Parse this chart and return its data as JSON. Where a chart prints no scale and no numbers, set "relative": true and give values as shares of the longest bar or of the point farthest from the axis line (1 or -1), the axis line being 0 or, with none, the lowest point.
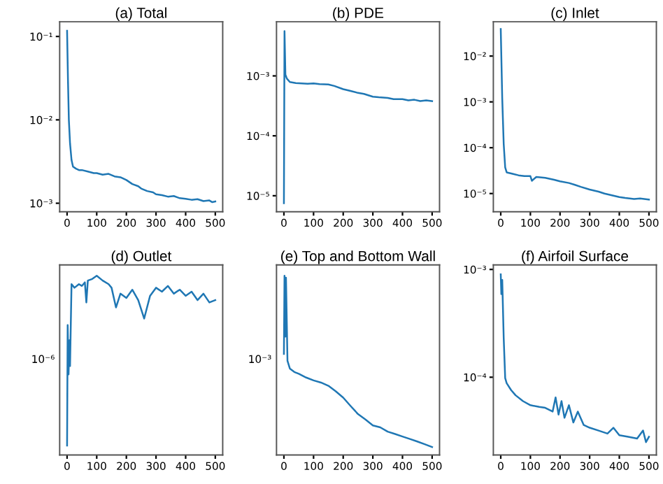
{
  "chart_data": [
    {
      "type": "line",
      "title": "(a) Total",
      "log": "y",
      "xlim": [
        -25,
        525
      ],
      "xticks": [
        0,
        100,
        200,
        300,
        400,
        500
      ],
      "ylim": [
        0.00079,
        0.15
      ],
      "yticks": [
        {
          "value": 0.1,
          "label": "10⁻¹"
        },
        {
          "value": 0.01,
          "label": "10⁻²"
        },
        {
          "value": 0.001,
          "label": "10⁻³"
        }
      ],
      "x": [
        0,
        3,
        6,
        10,
        15,
        20,
        30,
        40,
        50,
        70,
        90,
        100,
        120,
        140,
        160,
        180,
        200,
        220,
        240,
        250,
        270,
        290,
        300,
        320,
        340,
        360,
        380,
        400,
        420,
        440,
        460,
        480,
        490,
        500
      ],
      "series": [
        {
          "color": "#1f77b4",
          "values": [
            0.117,
            0.03,
            0.01,
            0.0052,
            0.0033,
            0.00275,
            0.0026,
            0.0025,
            0.0025,
            0.0024,
            0.0023,
            0.0023,
            0.0022,
            0.00225,
            0.0021,
            0.00205,
            0.0019,
            0.0017,
            0.0016,
            0.0015,
            0.0014,
            0.00135,
            0.00128,
            0.00125,
            0.0012,
            0.00122,
            0.00115,
            0.00113,
            0.0011,
            0.00112,
            0.00106,
            0.00108,
            0.00103,
            0.00105
          ]
        }
      ]
    },
    {
      "type": "line",
      "title": "(b) PDE",
      "log": "y",
      "xlim": [
        -25,
        525
      ],
      "xticks": [
        0,
        100,
        200,
        300,
        400,
        500
      ],
      "ylim": [
        5.4e-06,
        0.008
      ],
      "yticks": [
        {
          "value": 0.001,
          "label": "10⁻³"
        },
        {
          "value": 0.0001,
          "label": "10⁻⁴"
        },
        {
          "value": 1e-05,
          "label": "10⁻⁵"
        }
      ],
      "x": [
        0,
        2,
        5,
        10,
        20,
        40,
        60,
        80,
        100,
        120,
        150,
        170,
        200,
        220,
        250,
        270,
        300,
        320,
        350,
        370,
        400,
        420,
        440,
        460,
        480,
        500
      ],
      "series": [
        {
          "color": "#1f77b4",
          "values": [
            7.5e-06,
            0.0056,
            0.00105,
            0.0009,
            0.00079,
            0.00076,
            0.00075,
            0.00074,
            0.00075,
            0.00073,
            0.00072,
            0.00068,
            0.0006,
            0.00057,
            0.00052,
            0.0005,
            0.00045,
            0.00044,
            0.00043,
            0.00041,
            0.00041,
            0.00039,
            0.0004,
            0.00038,
            0.00039,
            0.00038
          ]
        }
      ]
    },
    {
      "type": "line",
      "title": "(c) Inlet",
      "log": "y",
      "xlim": [
        -25,
        525
      ],
      "xticks": [
        0,
        100,
        200,
        300,
        400,
        500
      ],
      "ylim": [
        4e-06,
        0.056
      ],
      "yticks": [
        {
          "value": 0.01,
          "label": "10⁻²"
        },
        {
          "value": 0.001,
          "label": "10⁻³"
        },
        {
          "value": 0.0001,
          "label": "10⁻⁴"
        },
        {
          "value": 1e-05,
          "label": "10⁻⁵"
        }
      ],
      "x": [
        0,
        5,
        10,
        15,
        20,
        40,
        60,
        80,
        100,
        105,
        120,
        150,
        180,
        200,
        230,
        250,
        270,
        300,
        330,
        350,
        380,
        400,
        420,
        450,
        470,
        500
      ],
      "series": [
        {
          "color": "#1f77b4",
          "values": [
            0.039,
            0.0012,
            0.00012,
            3.7e-05,
            2.9e-05,
            2.7e-05,
            2.5e-05,
            2.4e-05,
            2.4e-05,
            1.9e-05,
            2.3e-05,
            2.2e-05,
            2e-05,
            1.85e-05,
            1.7e-05,
            1.55e-05,
            1.4e-05,
            1.22e-05,
            1.1e-05,
            1e-05,
            9e-06,
            8.4e-06,
            8e-06,
            7.6e-06,
            7.8e-06,
            7.4e-06
          ]
        }
      ]
    },
    {
      "type": "line",
      "title": "(d) Outlet",
      "relative": true,
      "xlim": [
        -25,
        525
      ],
      "xticks": [
        0,
        100,
        200,
        300,
        400,
        500
      ],
      "annotations": [
        "10⁻⁶"
      ],
      "x": [
        0,
        2,
        5,
        8,
        10,
        15,
        25,
        40,
        50,
        60,
        65,
        70,
        85,
        100,
        120,
        140,
        150,
        165,
        180,
        200,
        220,
        240,
        260,
        280,
        300,
        320,
        340,
        360,
        380,
        400,
        420,
        440,
        460,
        480,
        500
      ],
      "series": [
        {
          "color": "#1f77b4",
          "values": [
            0.053,
            0.725,
            0.45,
            0.64,
            0.496,
            0.953,
            0.933,
            0.953,
            0.943,
            0.963,
            0.851,
            0.973,
            0.982,
            1.0,
            0.973,
            0.953,
            0.933,
            0.823,
            0.9,
            0.876,
            0.922,
            0.864,
            0.761,
            0.888,
            0.933,
            0.911,
            0.943,
            0.9,
            0.922,
            0.888,
            0.911,
            0.864,
            0.9,
            0.851,
            0.864
          ]
        }
      ]
    },
    {
      "type": "line",
      "title": "(e) Top and Bottom Wall",
      "relative": true,
      "xlim": [
        -25,
        525
      ],
      "xticks": [
        0,
        100,
        200,
        300,
        400,
        500
      ],
      "annotations": [
        "10⁻³"
      ],
      "x": [
        0,
        2,
        5,
        7,
        12,
        20,
        35,
        50,
        75,
        100,
        125,
        150,
        175,
        200,
        225,
        250,
        275,
        300,
        325,
        350,
        375,
        400,
        425,
        450,
        475,
        500
      ],
      "series": [
        {
          "color": "#1f77b4",
          "values": [
            0.564,
            1.0,
            0.66,
            0.989,
            0.525,
            0.482,
            0.463,
            0.453,
            0.432,
            0.416,
            0.404,
            0.386,
            0.355,
            0.32,
            0.273,
            0.228,
            0.198,
            0.165,
            0.154,
            0.13,
            0.117,
            0.103,
            0.089,
            0.075,
            0.06,
            0.044
          ]
        }
      ]
    },
    {
      "type": "line",
      "title": "(f) Airfoil Surface",
      "log": "y",
      "xlim": [
        -25,
        525
      ],
      "xticks": [
        0,
        100,
        200,
        300,
        400,
        500
      ],
      "ylim": [
        1.9e-05,
        0.0011
      ],
      "yticks": [
        {
          "value": 0.001,
          "label": "10⁻³"
        },
        {
          "value": 0.0001,
          "label": "10⁻⁴"
        }
      ],
      "x": [
        0,
        2,
        5,
        10,
        15,
        20,
        35,
        50,
        75,
        100,
        130,
        150,
        175,
        185,
        195,
        205,
        215,
        230,
        245,
        260,
        280,
        300,
        330,
        360,
        380,
        400,
        430,
        460,
        480,
        490,
        500
      ],
      "series": [
        {
          "color": "#1f77b4",
          "values": [
            0.0009,
            0.00059,
            0.0008,
            0.00023,
            9.8e-05,
            8.8e-05,
            7.6e-05,
            6.8e-05,
            6e-05,
            5.5e-05,
            5.3e-05,
            5.2e-05,
            4.8e-05,
            6.5e-05,
            4.5e-05,
            6e-05,
            4.2e-05,
            5.5e-05,
            3.8e-05,
            4.8e-05,
            3.6e-05,
            3.4e-05,
            3.2e-05,
            3e-05,
            3.4e-05,
            2.9e-05,
            2.8e-05,
            2.7e-05,
            3.2e-05,
            2.5e-05,
            2.8e-05
          ]
        }
      ]
    }
  ]
}
